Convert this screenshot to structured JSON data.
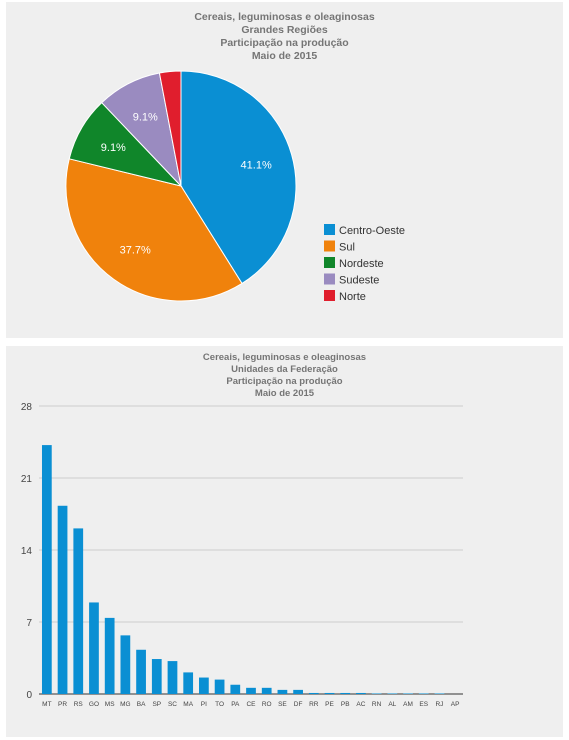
{
  "charts": [
    {
      "titles": [
        "Cereais, leguminosas e oleaginosas",
        "Grandes Regiões",
        "Participação na produção",
        "Maio de 2015"
      ]
    },
    {
      "titles": [
        "Cereais, leguminosas e oleaginosas",
        "Unidades da Federação",
        "Participação na produção",
        "Maio de 2015"
      ]
    }
  ],
  "chart_data": [
    {
      "type": "pie",
      "title": "Cereais, leguminosas e oleaginosas — Grandes Regiões — Participação na produção — Maio de 2015",
      "legend_position": "right",
      "slices": [
        {
          "label": "Centro-Oeste",
          "value": 41.1,
          "display": "41.1%",
          "color": "#0a8fd3"
        },
        {
          "label": "Sul",
          "value": 37.7,
          "display": "37.7%",
          "color": "#f0820c"
        },
        {
          "label": "Nordeste",
          "value": 9.1,
          "display": "9.1%",
          "color": "#10862a"
        },
        {
          "label": "Sudeste",
          "value": 9.1,
          "display": "9.1%",
          "color": "#9a8bc0"
        },
        {
          "label": "Norte",
          "value": 3.0,
          "display": "",
          "color": "#e01e2d"
        }
      ]
    },
    {
      "type": "bar",
      "title": "Cereais, leguminosas e oleaginosas — Unidades da Federação — Participação na produção — Maio de 2015",
      "categories": [
        "MT",
        "PR",
        "RS",
        "GO",
        "MS",
        "MG",
        "BA",
        "SP",
        "SC",
        "MA",
        "PI",
        "TO",
        "PA",
        "CE",
        "RO",
        "SE",
        "DF",
        "RR",
        "PE",
        "PB",
        "AC",
        "RN",
        "AL",
        "AM",
        "ES",
        "RJ",
        "AP"
      ],
      "values": [
        24.2,
        18.3,
        16.1,
        8.9,
        7.4,
        5.7,
        4.3,
        3.4,
        3.2,
        2.1,
        1.6,
        1.4,
        0.9,
        0.6,
        0.6,
        0.4,
        0.4,
        0.1,
        0.1,
        0.1,
        0.1,
        0.05,
        0.05,
        0.05,
        0.05,
        0.05,
        0.02
      ],
      "ylim": [
        0,
        28
      ],
      "yticks": [
        0,
        7,
        14,
        21,
        28
      ],
      "color": "#0a8fd3",
      "grid": true
    }
  ]
}
